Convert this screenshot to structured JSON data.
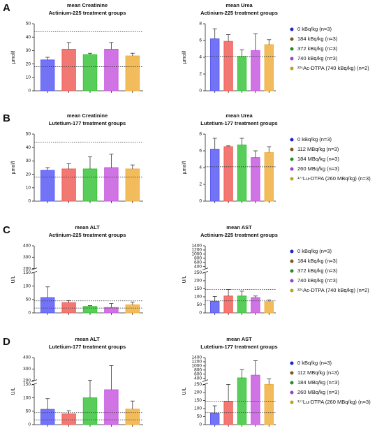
{
  "panels": [
    {
      "label": "A",
      "marker_colors": [
        "#2020d0",
        "#7a5a20",
        "#2a8a2a",
        "#9a40d0",
        "#c0a020"
      ],
      "legend": [
        "0 kBq/kg (n=3)",
        "184 kBq/kg (n=3)",
        "372 kBq/kg (n=3)",
        "740 kBq/kg (n=3)",
        "²²⁵Ac-DTPA (740 kBq/kg) (n=2)"
      ]
    },
    {
      "label": "B",
      "marker_colors": [
        "#2020d0",
        "#7a5a20",
        "#2a8a2a",
        "#9a40d0",
        "#c0a020"
      ],
      "legend": [
        "0 kBq/kg (n=3)",
        "112 MBq/kg (n=3)",
        "184 MBq/kg (n=3)",
        "260 MBq/kg (n=3)",
        "¹⁷⁷Lu-DTPA (260 MBq/kg) (n=3)"
      ]
    },
    {
      "label": "C",
      "marker_colors": [
        "#2020d0",
        "#7a5a20",
        "#2a8a2a",
        "#9a40d0",
        "#c0a020"
      ],
      "legend": [
        "0 kBq/kg (n=3)",
        "184 kBq/kg (n=3)",
        "372 kBq/kg (n=3)",
        "740 kBq/kg (n=3)",
        "²²⁵Ac-DTPA (740 kBq/kg) (n=2)"
      ]
    },
    {
      "label": "D",
      "marker_colors": [
        "#2020d0",
        "#7a5a20",
        "#2a8a2a",
        "#9a40d0",
        "#c0a020"
      ],
      "legend": [
        "0 kBq/kg (n=3)",
        "112 MBq/kg (n=3)",
        "184 MBq/kg (n=3)",
        "260 MBq/kg (n=3)",
        "¹⁷⁷Lu-DTPA (260 MBq/kg) (n=3)"
      ]
    }
  ],
  "chart_data": [
    {
      "type": "bar",
      "title": "mean Creatinine",
      "subtitle": "Actinium-225 treatment groups",
      "ylabel": "µmol/l",
      "ylim": [
        0,
        50
      ],
      "yticks": [
        0,
        10,
        20,
        30,
        40,
        50
      ],
      "colors": [
        "#5b5bf5",
        "#f0605a",
        "#3cc43c",
        "#c85ae0",
        "#f0b040"
      ],
      "values": [
        23,
        31,
        27,
        31,
        26
      ],
      "errors": [
        2,
        5,
        1,
        5,
        2
      ],
      "reference_lines": [
        18,
        44
      ]
    },
    {
      "type": "bar",
      "title": "mean Urea",
      "subtitle": "Actinium-225 treatment groups",
      "ylabel": "µmol/l",
      "ylim": [
        0,
        8
      ],
      "yticks": [
        0,
        2,
        4,
        6,
        8
      ],
      "colors": [
        "#5b5bf5",
        "#f0605a",
        "#3cc43c",
        "#c85ae0",
        "#f0b040"
      ],
      "values": [
        6.2,
        5.9,
        4.1,
        4.8,
        5.5
      ],
      "errors": [
        1.2,
        0.8,
        0.8,
        2,
        0.6
      ],
      "reference_lines": [
        4.1
      ]
    },
    {
      "type": "bar",
      "title": "mean Creatinine",
      "subtitle": "Lutetium-177 treatment groups",
      "ylabel": "µmol/l",
      "ylim": [
        0,
        50
      ],
      "yticks": [
        0,
        10,
        20,
        30,
        40,
        50
      ],
      "colors": [
        "#5b5bf5",
        "#f0605a",
        "#3cc43c",
        "#c85ae0",
        "#f0b040"
      ],
      "values": [
        23,
        24,
        24,
        25,
        24
      ],
      "errors": [
        2,
        4,
        9,
        10,
        3
      ],
      "reference_lines": [
        18,
        44
      ]
    },
    {
      "type": "bar",
      "title": "mean Urea",
      "subtitle": "Lutetium-177 treatment groups",
      "ylabel": "µmol/l",
      "ylim": [
        0,
        8
      ],
      "yticks": [
        0,
        2,
        4,
        6,
        8
      ],
      "colors": [
        "#5b5bf5",
        "#f0605a",
        "#3cc43c",
        "#c85ae0",
        "#f0b040"
      ],
      "values": [
        6.2,
        6.5,
        6.7,
        5.2,
        5.8
      ],
      "errors": [
        1.3,
        0.1,
        0.8,
        0.8,
        0.7
      ],
      "reference_lines": [
        4.1
      ]
    },
    {
      "type": "bar",
      "title": "mean ALT",
      "subtitle": "Actinium-225 treatment groups",
      "ylabel": "U/L",
      "ylim": [
        0,
        400
      ],
      "ybreak": [
        150,
        200
      ],
      "yticks": [
        0,
        50,
        100,
        150,
        200,
        300,
        400
      ],
      "colors": [
        "#5b5bf5",
        "#f0605a",
        "#3cc43c",
        "#c85ae0",
        "#f0b040"
      ],
      "values": [
        57,
        38,
        24,
        20,
        30
      ],
      "errors": [
        40,
        8,
        3,
        15,
        10
      ],
      "reference_lines": [
        18,
        45
      ]
    },
    {
      "type": "bar",
      "title": "mean AST",
      "subtitle": "Actinium-225 treatment groups",
      "ylabel": "U/L",
      "ylim": [
        0,
        1400
      ],
      "ybreak": [
        250,
        300
      ],
      "yticks": [
        0,
        50,
        100,
        150,
        200,
        250,
        400,
        600,
        800,
        1000,
        1200,
        1400
      ],
      "colors": [
        "#5b5bf5",
        "#f0605a",
        "#3cc43c",
        "#c85ae0",
        "#f0b040"
      ],
      "values": [
        72,
        105,
        105,
        95,
        70
      ],
      "errors": [
        30,
        40,
        30,
        10,
        10
      ],
      "reference_lines": [
        75,
        145
      ]
    },
    {
      "type": "bar",
      "title": "mean ALT",
      "subtitle": "Lutetium-177 treatment groups",
      "ylabel": "U/L",
      "ylim": [
        0,
        400
      ],
      "ybreak": [
        150,
        200
      ],
      "yticks": [
        0,
        50,
        100,
        150,
        200,
        300,
        400
      ],
      "colors": [
        "#5b5bf5",
        "#f0605a",
        "#3cc43c",
        "#c85ae0",
        "#f0b040"
      ],
      "values": [
        57,
        40,
        100,
        130,
        58
      ],
      "errors": [
        40,
        12,
        100,
        200,
        30
      ],
      "reference_lines": [
        18,
        45
      ]
    },
    {
      "type": "bar",
      "title": "mean AST",
      "subtitle": "Lutetium-177 treatment groups",
      "ylabel": "U/L",
      "ylim": [
        0,
        1400
      ],
      "ybreak": [
        250,
        300
      ],
      "yticks": [
        0,
        50,
        100,
        150,
        200,
        250,
        400,
        600,
        800,
        1000,
        1200,
        1400
      ],
      "colors": [
        "#5b5bf5",
        "#f0605a",
        "#3cc43c",
        "#c85ae0",
        "#f0b040"
      ],
      "values": [
        72,
        145,
        420,
        550,
        270
      ],
      "errors": [
        45,
        120,
        400,
        700,
        100
      ],
      "reference_lines": [
        75,
        145
      ]
    }
  ]
}
